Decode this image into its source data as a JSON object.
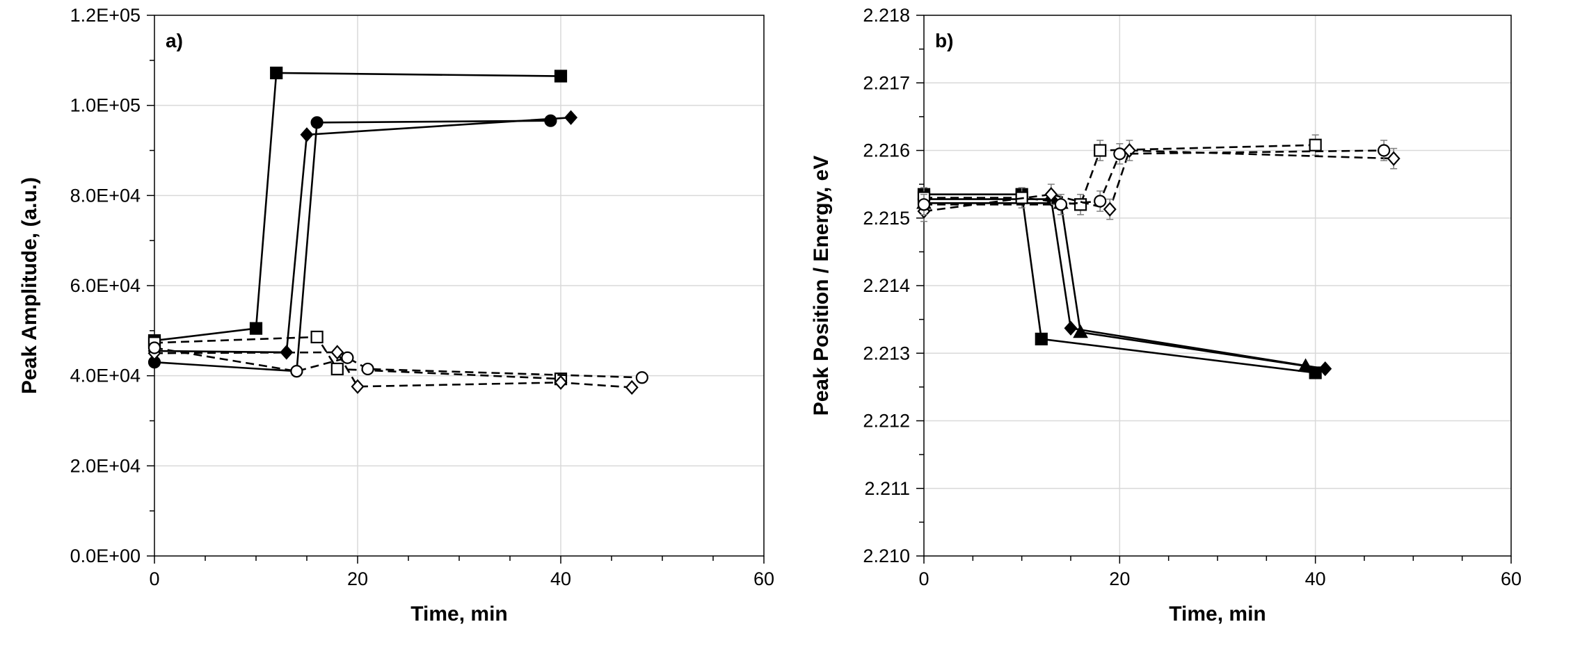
{
  "chart_data": [
    {
      "type": "line",
      "panel_label": "a)",
      "title": "",
      "xlabel": "Time, min",
      "ylabel": "Peak Amplitude, (a.u.)",
      "xlim": [
        0,
        60
      ],
      "ylim": [
        0,
        120000
      ],
      "xticks": [
        0,
        20,
        40,
        60
      ],
      "xtick_labels": [
        "0",
        "20",
        "40",
        "60"
      ],
      "yticks": [
        0,
        20000,
        40000,
        60000,
        80000,
        100000,
        120000
      ],
      "ytick_labels": [
        "0.0E+00",
        "2.0E+04",
        "4.0E+04",
        "6.0E+04",
        "8.0E+04",
        "1.0E+05",
        "1.2E+05"
      ],
      "grid": true,
      "series": [
        {
          "name": "filled square",
          "marker": "square",
          "filled": true,
          "dashed": false,
          "x": [
            0,
            10,
            12,
            40
          ],
          "y": [
            47800,
            50500,
            107200,
            106500
          ]
        },
        {
          "name": "filled diamond",
          "marker": "diamond",
          "filled": true,
          "dashed": false,
          "x": [
            0,
            13,
            15,
            41
          ],
          "y": [
            45500,
            45200,
            93500,
            97300
          ]
        },
        {
          "name": "filled circle",
          "marker": "circle",
          "filled": true,
          "dashed": false,
          "x": [
            0,
            14,
            16,
            39
          ],
          "y": [
            43000,
            41000,
            96200,
            96600
          ]
        },
        {
          "name": "open square",
          "marker": "square",
          "filled": false,
          "dashed": true,
          "x": [
            0,
            16,
            18,
            40
          ],
          "y": [
            47300,
            48600,
            41500,
            39300
          ]
        },
        {
          "name": "open diamond",
          "marker": "diamond",
          "filled": false,
          "dashed": true,
          "x": [
            0,
            18,
            20,
            40,
            47
          ],
          "y": [
            45000,
            45200,
            37600,
            38500,
            37400
          ]
        },
        {
          "name": "open circle",
          "marker": "circle",
          "filled": false,
          "dashed": true,
          "x": [
            0,
            14,
            19,
            21,
            48
          ],
          "y": [
            46200,
            41000,
            44000,
            41500,
            39600
          ]
        }
      ]
    },
    {
      "type": "line",
      "panel_label": "b)",
      "title": "",
      "xlabel": "Time, min",
      "ylabel": "Peak Position / Energy, eV",
      "xlim": [
        0,
        60
      ],
      "ylim": [
        2.21,
        2.218
      ],
      "xticks": [
        0,
        20,
        40,
        60
      ],
      "xtick_labels": [
        "0",
        "20",
        "40",
        "60"
      ],
      "yticks": [
        2.21,
        2.211,
        2.212,
        2.213,
        2.214,
        2.215,
        2.216,
        2.217,
        2.218
      ],
      "ytick_labels": [
        "2.210",
        "2.211",
        "2.212",
        "2.213",
        "2.214",
        "2.215",
        "2.216",
        "2.217",
        "2.218"
      ],
      "grid": true,
      "series": [
        {
          "name": "filled square",
          "marker": "square",
          "filled": true,
          "dashed": false,
          "x": [
            0,
            10,
            12,
            40
          ],
          "y": [
            2.21535,
            2.21535,
            2.21321,
            2.21271
          ]
        },
        {
          "name": "filled diamond",
          "marker": "diamond",
          "filled": true,
          "dashed": false,
          "x": [
            0,
            13,
            15,
            41
          ],
          "y": [
            2.21528,
            2.21528,
            2.21337,
            2.21277
          ]
        },
        {
          "name": "filled triangle",
          "marker": "triangle",
          "filled": true,
          "dashed": false,
          "x": [
            0,
            14,
            16,
            39
          ],
          "y": [
            2.21522,
            2.21522,
            2.21331,
            2.21281
          ]
        },
        {
          "name": "open square",
          "marker": "square",
          "filled": false,
          "dashed": true,
          "x": [
            0,
            10,
            16,
            18,
            40
          ],
          "y": [
            2.2153,
            2.2153,
            2.2152,
            2.216,
            2.21608
          ],
          "err": 0.00015
        },
        {
          "name": "open diamond",
          "marker": "diamond",
          "filled": false,
          "dashed": true,
          "x": [
            0,
            13,
            19,
            21,
            48
          ],
          "y": [
            2.2151,
            2.21535,
            2.21513,
            2.216,
            2.21588
          ],
          "err": 0.00015
        },
        {
          "name": "open circle",
          "marker": "circle",
          "filled": false,
          "dashed": true,
          "x": [
            0,
            14,
            18,
            20,
            47
          ],
          "y": [
            2.2152,
            2.2152,
            2.21525,
            2.21595,
            2.216
          ],
          "err": 0.00015
        }
      ]
    }
  ]
}
